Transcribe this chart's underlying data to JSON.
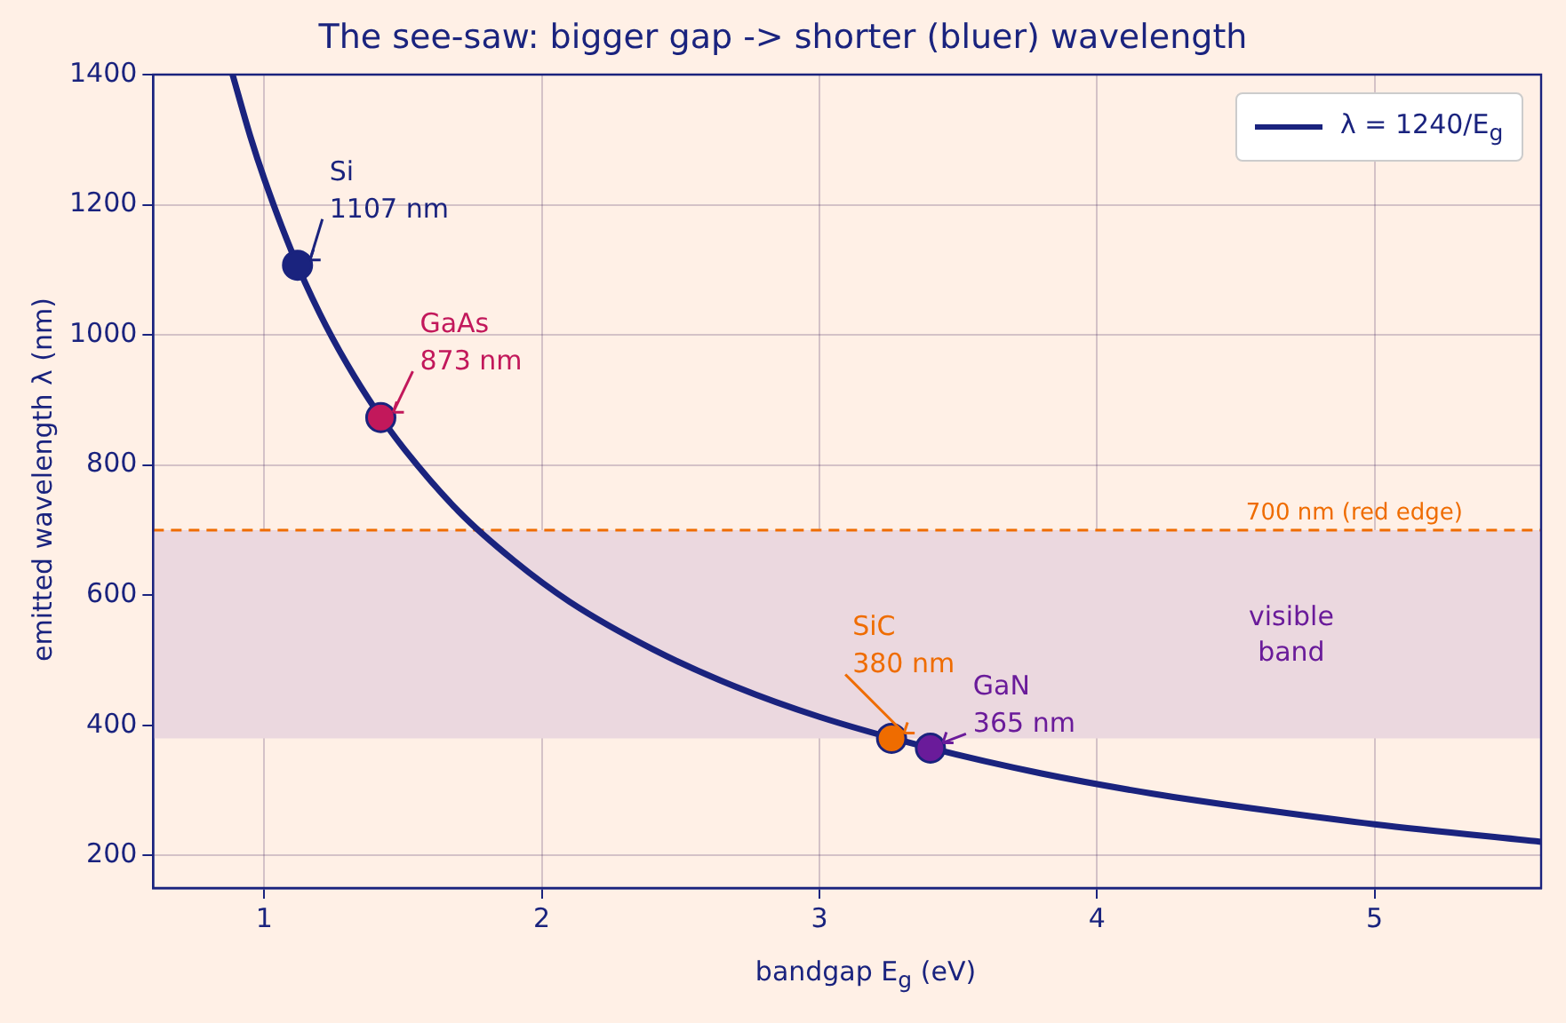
{
  "chart_data": {
    "type": "line",
    "title": "The see-saw: bigger gap -> shorter (bluer) wavelength",
    "xlabel": "bandgap  E$_{g}$  (eV)",
    "ylabel": "emitted wavelength  λ  (nm)",
    "xlim": [
      0.6,
      5.6
    ],
    "ylim": [
      150,
      1400
    ],
    "xticks": [
      1,
      2,
      3,
      4,
      5
    ],
    "yticks": [
      200,
      400,
      600,
      800,
      1000,
      1200,
      1400
    ],
    "grid": true,
    "legend": "top right",
    "series": [
      {
        "name": "λ = 1240/E$_{g}$",
        "type": "line",
        "color": "#1a237e",
        "marker": "none",
        "line_style": "solid",
        "x": [
          0.886,
          0.95,
          1.0,
          1.1,
          1.2,
          1.3,
          1.4,
          1.5,
          1.7,
          1.9,
          2.1,
          2.4,
          2.7,
          3.0,
          3.4,
          3.8,
          4.2,
          4.6,
          5.0,
          5.6
        ],
        "values": [
          1400,
          1305,
          1240,
          1127,
          1033,
          954,
          886,
          827,
          729,
          653,
          590,
          517,
          459,
          413,
          365,
          326,
          295,
          270,
          248,
          221
        ]
      },
      {
        "type": "scatter",
        "marker": "circle",
        "x": [
          1.12,
          1.42,
          3.26,
          3.4
        ],
        "values": [
          1107,
          873,
          380,
          365
        ],
        "colors": [
          "#1a237e",
          "#c2185b",
          "#ef6c00",
          "#6a1b9a"
        ]
      }
    ],
    "ref_lines": [
      {
        "axis": "y",
        "value": 700,
        "label": "700 nm (red edge)",
        "color": "#ef6c00",
        "line_style": "dashed"
      }
    ],
    "bands": [
      {
        "axis": "y",
        "from": 380,
        "to": 700,
        "label": "visible\nband",
        "color": "#ebd8df"
      }
    ],
    "annotations": [
      {
        "text": "Si\n1107 nm",
        "x": 1.12,
        "y": 1107
      },
      {
        "text": "GaAs\n873 nm",
        "x": 1.42,
        "y": 873
      },
      {
        "text": "SiC\n380 nm",
        "x": 3.26,
        "y": 380
      },
      {
        "text": "GaN\n365 nm",
        "x": 3.4,
        "y": 365
      }
    ]
  }
}
